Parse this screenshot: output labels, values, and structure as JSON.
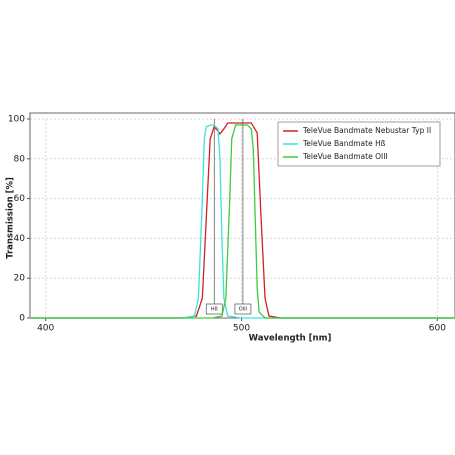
{
  "chart_data": {
    "type": "line",
    "xlabel": "Wavelength [nm]",
    "ylabel": "Transmission [%]",
    "xlim": [
      392,
      609
    ],
    "ylim": [
      0,
      100
    ],
    "xticks": [
      400,
      500,
      600
    ],
    "yticks": [
      0,
      20,
      40,
      60,
      80,
      100
    ],
    "grid": true,
    "legend": "upper right",
    "series": [
      {
        "name": "TeleVue Bandmate Nebustar Typ II",
        "color": "#d42020",
        "x": [
          392,
          470,
          477,
          480,
          482,
          484,
          486,
          488,
          489,
          491,
          493,
          500,
          505,
          508,
          510,
          512,
          514,
          520,
          609
        ],
        "values": [
          0,
          0,
          1,
          10,
          50,
          90,
          96,
          94,
          92.5,
          95,
          98,
          98,
          98,
          93,
          50,
          10,
          1,
          0,
          0
        ]
      },
      {
        "name": "TeleVue Bandmate Hß",
        "color": "#3fe0d8",
        "x": [
          392,
          470,
          476,
          478,
          480,
          481,
          482,
          484,
          486,
          488,
          489,
          490,
          491,
          493,
          500,
          609
        ],
        "values": [
          0,
          0,
          1,
          10,
          60,
          90,
          96,
          97,
          97,
          95,
          80,
          40,
          10,
          1,
          0,
          0
        ]
      },
      {
        "name": "TeleVue Bandmate OIII",
        "color": "#3ccc3c",
        "x": [
          392,
          485,
          490,
          492,
          494,
          495,
          497,
          500,
          503,
          505,
          506,
          507,
          508,
          509,
          512,
          609
        ],
        "values": [
          0,
          0,
          1,
          10,
          60,
          90,
          97,
          97,
          97,
          95,
          85,
          50,
          15,
          3,
          0,
          0
        ]
      }
    ],
    "annotations": [
      {
        "text": "Hß",
        "x": 486.1
      },
      {
        "text": "OIII",
        "x": 500.7
      }
    ]
  }
}
